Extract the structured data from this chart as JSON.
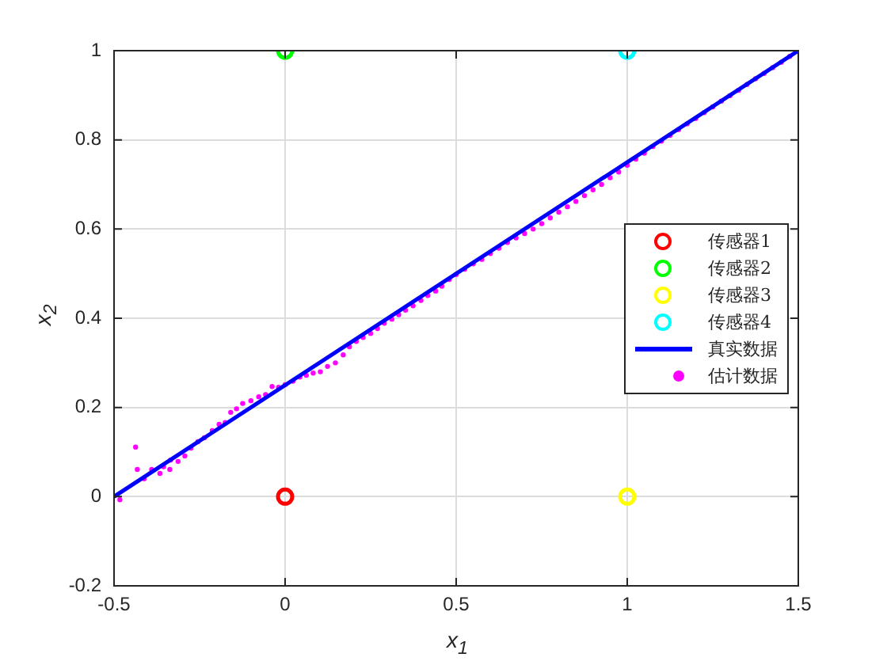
{
  "chart_data": {
    "type": "scatter",
    "xlabel": "x$_{1}$",
    "ylabel": "x$_{2}$",
    "xlim": [
      -0.5,
      1.5
    ],
    "ylim": [
      -0.2,
      1
    ],
    "xticks": [
      -0.5,
      0,
      0.5,
      1,
      1.5
    ],
    "yticks": [
      -0.2,
      0,
      0.2,
      0.4,
      0.6,
      0.8,
      1
    ],
    "grid": true,
    "legend": "right",
    "series": [
      {
        "name": "传感器1",
        "type": "scatter",
        "marker": "circle",
        "color": "#ff0000",
        "x": [
          0
        ],
        "values": [
          0
        ]
      },
      {
        "name": "传感器2",
        "type": "scatter",
        "marker": "circle",
        "color": "#00ff00",
        "x": [
          0
        ],
        "values": [
          1
        ]
      },
      {
        "name": "传感器3",
        "type": "scatter",
        "marker": "circle",
        "color": "#ffff00",
        "x": [
          1
        ],
        "values": [
          0
        ]
      },
      {
        "name": "传感器4",
        "type": "scatter",
        "marker": "circle",
        "color": "#00ffff",
        "x": [
          1
        ],
        "values": [
          1
        ]
      },
      {
        "name": "真实数据",
        "type": "line",
        "marker": "none",
        "line_style": "solid",
        "color": "#0000ff",
        "x": [
          -0.5,
          1.5
        ],
        "values": [
          0,
          1
        ]
      },
      {
        "name": "估计数据",
        "marker": "circle",
        "color": "#ff00ff",
        "x": [
          -0.483,
          -0.437,
          -0.432,
          -0.412,
          -0.39,
          -0.366,
          -0.355,
          -0.337,
          -0.335,
          -0.313,
          -0.293,
          -0.275,
          -0.255,
          -0.236,
          -0.213,
          -0.193,
          -0.175,
          -0.159,
          -0.142,
          -0.124,
          -0.1,
          -0.077,
          -0.057,
          -0.038,
          -0.019,
          0,
          0.023,
          0.043,
          0.062,
          0.082,
          0.103,
          0.124,
          0.147,
          0.17,
          0.188,
          0.208,
          0.228,
          0.25,
          0.27,
          0.29,
          0.312,
          0.332,
          0.352,
          0.374,
          0.397,
          0.417,
          0.44,
          0.458,
          0.48,
          0.5,
          0.525,
          0.55,
          0.575,
          0.6,
          0.625,
          0.65,
          0.675,
          0.7,
          0.725,
          0.75,
          0.775,
          0.8,
          0.825,
          0.85,
          0.875,
          0.9,
          0.925,
          0.95,
          0.975,
          1,
          1.025,
          1.05,
          1.075,
          1.1,
          1.125,
          1.15,
          1.175,
          1.2,
          1.225,
          1.25,
          1.275,
          1.3,
          1.325,
          1.35,
          1.375,
          1.4,
          1.425,
          1.45,
          1.475
        ],
        "values": [
          -0.007,
          0.111,
          0.061,
          0.04,
          0.061,
          0.052,
          0.067,
          0.061,
          0.082,
          0.079,
          0.091,
          0.109,
          0.123,
          0.132,
          0.148,
          0.162,
          0.166,
          0.189,
          0.197,
          0.209,
          0.215,
          0.224,
          0.229,
          0.247,
          0.245,
          0.251,
          0.259,
          0.268,
          0.272,
          0.277,
          0.28,
          0.292,
          0.3,
          0.318,
          0.336,
          0.348,
          0.357,
          0.366,
          0.377,
          0.389,
          0.398,
          0.408,
          0.418,
          0.428,
          0.44,
          0.451,
          0.461,
          0.472,
          0.487,
          0.498,
          0.51,
          0.522,
          0.532,
          0.545,
          0.557,
          0.57,
          0.58,
          0.59,
          0.6,
          0.612,
          0.625,
          0.638,
          0.65,
          0.662,
          0.675,
          0.688,
          0.7,
          0.715,
          0.728,
          0.743,
          0.757,
          0.77,
          0.785,
          0.797,
          0.81,
          0.823,
          0.836,
          0.848,
          0.861,
          0.874,
          0.887,
          0.899,
          0.911,
          0.924,
          0.937,
          0.949,
          0.962,
          0.974,
          0.987
        ]
      }
    ]
  }
}
